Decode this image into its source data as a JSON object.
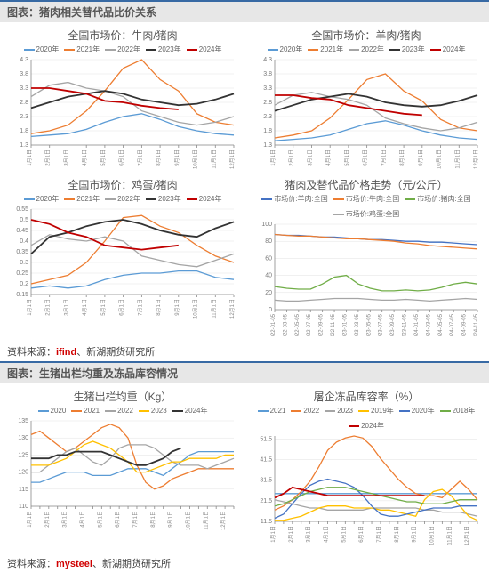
{
  "headers": {
    "panel1": "图表：猪肉相关替代品比价关系",
    "panel2": "图表：生猪出栏均重及冻品库容情况"
  },
  "sources": {
    "s1a": "资料来源：",
    "s1b": "ifind",
    "s1c": "、新湖期货研究所",
    "s2a": "资料来源：",
    "s2b": "mysteel",
    "s2c": "、新湖期货研究所"
  },
  "colors": {
    "blue": "#5b9bd5",
    "orange": "#ed7d31",
    "grey": "#a5a5a5",
    "yellow": "#ffc000",
    "darkblue": "#4472c4",
    "green": "#70ad47",
    "black": "#333333",
    "red": "#c00000",
    "panel_bg": "#ffffff",
    "axis": "#888888",
    "grid": "#e2e2e2"
  },
  "month_ticks": [
    "1月1日",
    "2月1日",
    "3月1日",
    "4月1日",
    "5月1日",
    "6月1日",
    "7月1日",
    "8月1日",
    "9月1日",
    "10月1日",
    "11月1日",
    "12月1日"
  ],
  "week_ticks": [
    "1月1日",
    "1月15日",
    "2月1日",
    "2月15日",
    "3月1日",
    "3月15日",
    "4月1日",
    "4月15日",
    "5月1日",
    "5月15日",
    "6月1日",
    "6月15日",
    "7月1日",
    "7月15日",
    "8月1日",
    "8月15日",
    "9月1日",
    "9月15日",
    "10月1日",
    "10月15日",
    "11月1日",
    "11月15日",
    "12月1日",
    "12月15日"
  ],
  "price_date_ticks": [
    "2022-01-05",
    "2022-03-05",
    "2022-05-05",
    "2022-07-05",
    "2022-09-05",
    "2022-11-05",
    "2023-01-05",
    "2023-03-05",
    "2023-05-05",
    "2023-07-05",
    "2023-09-05",
    "2023-11-05",
    "2024-01-05",
    "2024-03-05",
    "2024-05-05",
    "2024-07-05",
    "2024-09-05",
    "2024-11-05"
  ],
  "chart_beef": {
    "title": "全国市场价：牛肉/猪肉",
    "type": "line",
    "ylim": [
      1.3,
      4.3
    ],
    "yticks": [
      1.3,
      1.8,
      2.3,
      2.8,
      3.3,
      3.8,
      4.3
    ],
    "legend": [
      "2020年",
      "2021年",
      "2022年",
      "2023年",
      "2024年"
    ],
    "legend_colors": [
      "blue",
      "orange",
      "grey",
      "black",
      "red"
    ],
    "series": {
      "2020": [
        1.6,
        1.65,
        1.7,
        1.85,
        2.1,
        2.3,
        2.4,
        2.2,
        1.95,
        1.8,
        1.7,
        1.65
      ],
      "2021": [
        1.7,
        1.8,
        2.0,
        2.5,
        3.2,
        4.0,
        4.3,
        3.6,
        3.2,
        2.4,
        2.1,
        2.0
      ],
      "2022": [
        3.0,
        3.4,
        3.5,
        3.3,
        3.2,
        3.0,
        2.5,
        2.3,
        2.1,
        2.0,
        2.1,
        2.3
      ],
      "2023": [
        2.6,
        2.8,
        3.0,
        3.1,
        3.2,
        3.1,
        2.9,
        2.8,
        2.7,
        2.75,
        2.9,
        3.1
      ],
      "2024": [
        3.3,
        3.3,
        3.2,
        3.1,
        2.85,
        2.8,
        2.68,
        2.6,
        2.55
      ]
    }
  },
  "chart_mutton": {
    "title": "全国市场价：羊肉/猪肉",
    "type": "line",
    "ylim": [
      1.3,
      4.3
    ],
    "yticks": [
      1.3,
      1.8,
      2.3,
      2.8,
      3.3,
      3.8,
      4.3
    ],
    "legend": [
      "2020年",
      "2021年",
      "2022年",
      "2023年",
      "2024年"
    ],
    "legend_colors": [
      "blue",
      "orange",
      "grey",
      "black",
      "red"
    ],
    "series": {
      "2020": [
        1.45,
        1.5,
        1.55,
        1.65,
        1.85,
        2.05,
        2.15,
        2.0,
        1.8,
        1.65,
        1.55,
        1.5
      ],
      "2021": [
        1.55,
        1.65,
        1.8,
        2.25,
        2.9,
        3.6,
        3.8,
        3.2,
        2.85,
        2.2,
        1.9,
        1.8
      ],
      "2022": [
        2.7,
        3.05,
        3.15,
        3.0,
        2.9,
        2.7,
        2.25,
        2.05,
        1.9,
        1.8,
        1.9,
        2.1
      ],
      "2023": [
        2.5,
        2.7,
        2.9,
        3.0,
        3.1,
        3.0,
        2.8,
        2.7,
        2.65,
        2.7,
        2.85,
        3.05
      ],
      "2024": [
        3.05,
        3.05,
        2.95,
        2.9,
        2.7,
        2.6,
        2.5,
        2.4,
        2.35
      ]
    }
  },
  "chart_egg": {
    "title": "全国市场价：鸡蛋/猪肉",
    "type": "line",
    "ylim": [
      0.15,
      0.55
    ],
    "yticks": [
      0.15,
      0.2,
      0.25,
      0.3,
      0.35,
      0.4,
      0.45,
      0.5,
      0.55
    ],
    "legend": [
      "2020年",
      "2021年",
      "2022年",
      "2023年",
      "2024年"
    ],
    "legend_colors": [
      "blue",
      "orange",
      "grey",
      "black",
      "red"
    ],
    "series": {
      "2020": [
        0.18,
        0.19,
        0.18,
        0.19,
        0.22,
        0.24,
        0.25,
        0.25,
        0.26,
        0.26,
        0.23,
        0.22
      ],
      "2021": [
        0.2,
        0.22,
        0.24,
        0.3,
        0.4,
        0.51,
        0.52,
        0.47,
        0.44,
        0.38,
        0.33,
        0.3
      ],
      "2022": [
        0.38,
        0.43,
        0.41,
        0.4,
        0.42,
        0.4,
        0.33,
        0.31,
        0.29,
        0.28,
        0.31,
        0.34
      ],
      "2023": [
        0.34,
        0.42,
        0.44,
        0.47,
        0.49,
        0.5,
        0.48,
        0.45,
        0.43,
        0.42,
        0.46,
        0.49
      ],
      "2024": [
        0.5,
        0.48,
        0.44,
        0.42,
        0.38,
        0.37,
        0.36,
        0.37,
        0.38
      ]
    }
  },
  "chart_prices": {
    "title": "猪肉及替代品价格走势（元/公斤）",
    "type": "line",
    "ylim": [
      0,
      100
    ],
    "yticks": [
      0,
      20,
      40,
      60,
      80,
      100
    ],
    "legend": [
      "市场价:羊肉:全国",
      "市场价:牛肉:全国",
      "市场价:猪肉:全国",
      "市场价:鸡蛋:全国"
    ],
    "legend_colors": [
      "darkblue",
      "orange",
      "green",
      "grey"
    ],
    "series": {
      "mutton": [
        88,
        87,
        87,
        86,
        85,
        85,
        84,
        83,
        82,
        82,
        81,
        80,
        80,
        79,
        79,
        78,
        77,
        76
      ],
      "beef": [
        88,
        87,
        86,
        86,
        85,
        84,
        83,
        83,
        82,
        81,
        80,
        78,
        77,
        75,
        74,
        73,
        72,
        71
      ],
      "pork": [
        27,
        25,
        24,
        24,
        30,
        38,
        40,
        30,
        25,
        22,
        22,
        23,
        22,
        23,
        26,
        30,
        32,
        30
      ],
      "egg": [
        11,
        10,
        10,
        11,
        12,
        13,
        13,
        13,
        12,
        11,
        11,
        12,
        11,
        10,
        11,
        12,
        13,
        12
      ]
    }
  },
  "chart_weight": {
    "title": "生猪出栏均重（Kg）",
    "type": "line",
    "ylim": [
      110,
      135
    ],
    "yticks": [
      110,
      115,
      120,
      125,
      130,
      135
    ],
    "legend": [
      "2020",
      "2021",
      "2022",
      "2023",
      "2024年"
    ],
    "legend_colors": [
      "blue",
      "orange",
      "grey",
      "yellow",
      "black"
    ],
    "series": {
      "2020": [
        117,
        117,
        118,
        119,
        120,
        120,
        120,
        119,
        119,
        119,
        120,
        121,
        121,
        121,
        120,
        119,
        121,
        123,
        125,
        126,
        126,
        126,
        126,
        126
      ],
      "2021": [
        131,
        132,
        130,
        128,
        126,
        127,
        129,
        131,
        133,
        134,
        133,
        130,
        122,
        117,
        115,
        116,
        118,
        119,
        120,
        121,
        121,
        121,
        121,
        121
      ],
      "2022": [
        120,
        120,
        122,
        124,
        126,
        127,
        125,
        123,
        122,
        124,
        127,
        128,
        128,
        128,
        127,
        125,
        123,
        122,
        122,
        122,
        121,
        122,
        123,
        124
      ],
      "2023": [
        122,
        122,
        122,
        123,
        124,
        126,
        128,
        129,
        128,
        127,
        125,
        123,
        120,
        120,
        121,
        122,
        123,
        123,
        124,
        124,
        124,
        124,
        125,
        125
      ],
      "2024": [
        124,
        124,
        124,
        125,
        125,
        126,
        126,
        126,
        126,
        125,
        124,
        123,
        122,
        122,
        123,
        124,
        126,
        127
      ]
    }
  },
  "chart_cold": {
    "title": "屠企冻品库容率（%）",
    "type": "line",
    "ylim": [
      11.5,
      53
    ],
    "yticks": [
      11.5,
      21.5,
      31.5,
      41.5,
      51.5
    ],
    "legend": [
      "2021",
      "2022",
      "2023",
      "2019年",
      "2020年",
      "2018年",
      "2024年"
    ],
    "legend_colors": [
      "blue",
      "orange",
      "grey",
      "yellow",
      "darkblue",
      "green",
      "red"
    ],
    "series": {
      "2018": [
        25,
        25,
        25,
        25,
        25,
        25,
        25,
        25,
        25,
        25,
        25,
        25,
        25,
        25,
        25,
        25,
        25,
        25,
        25,
        25,
        25,
        25,
        25,
        25
      ],
      "2019": [
        17,
        19,
        22,
        26,
        31,
        38,
        46,
        50,
        52,
        53,
        52,
        48,
        42,
        37,
        32,
        28,
        25,
        24,
        24,
        23,
        27,
        31,
        27,
        22
      ],
      "2020": [
        22,
        21,
        20,
        19,
        18,
        18,
        17,
        17,
        17,
        17,
        17,
        18,
        18,
        18,
        18,
        18,
        18,
        17,
        17,
        16,
        16,
        16,
        15,
        14
      ],
      "2021": [
        12,
        12,
        13,
        14,
        16,
        18,
        19,
        19,
        19,
        18,
        18,
        18,
        17,
        17,
        16,
        15,
        14,
        22,
        26,
        27,
        24,
        19,
        14,
        12
      ],
      "2022": [
        13,
        15,
        20,
        25,
        29,
        31,
        32,
        31,
        30,
        28,
        24,
        19,
        15,
        14,
        14,
        15,
        16,
        17,
        18,
        18,
        18,
        19,
        19,
        19
      ],
      "2023": [
        19,
        20,
        22,
        24,
        26,
        27,
        28,
        28,
        28,
        27,
        26,
        25,
        24,
        23,
        22,
        21,
        21,
        20,
        20,
        20,
        21,
        22,
        22,
        22
      ],
      "2024": [
        23,
        25,
        28,
        27,
        26,
        25,
        24,
        24,
        24,
        24,
        24,
        24,
        24,
        24,
        24,
        24,
        24,
        24
      ]
    }
  }
}
